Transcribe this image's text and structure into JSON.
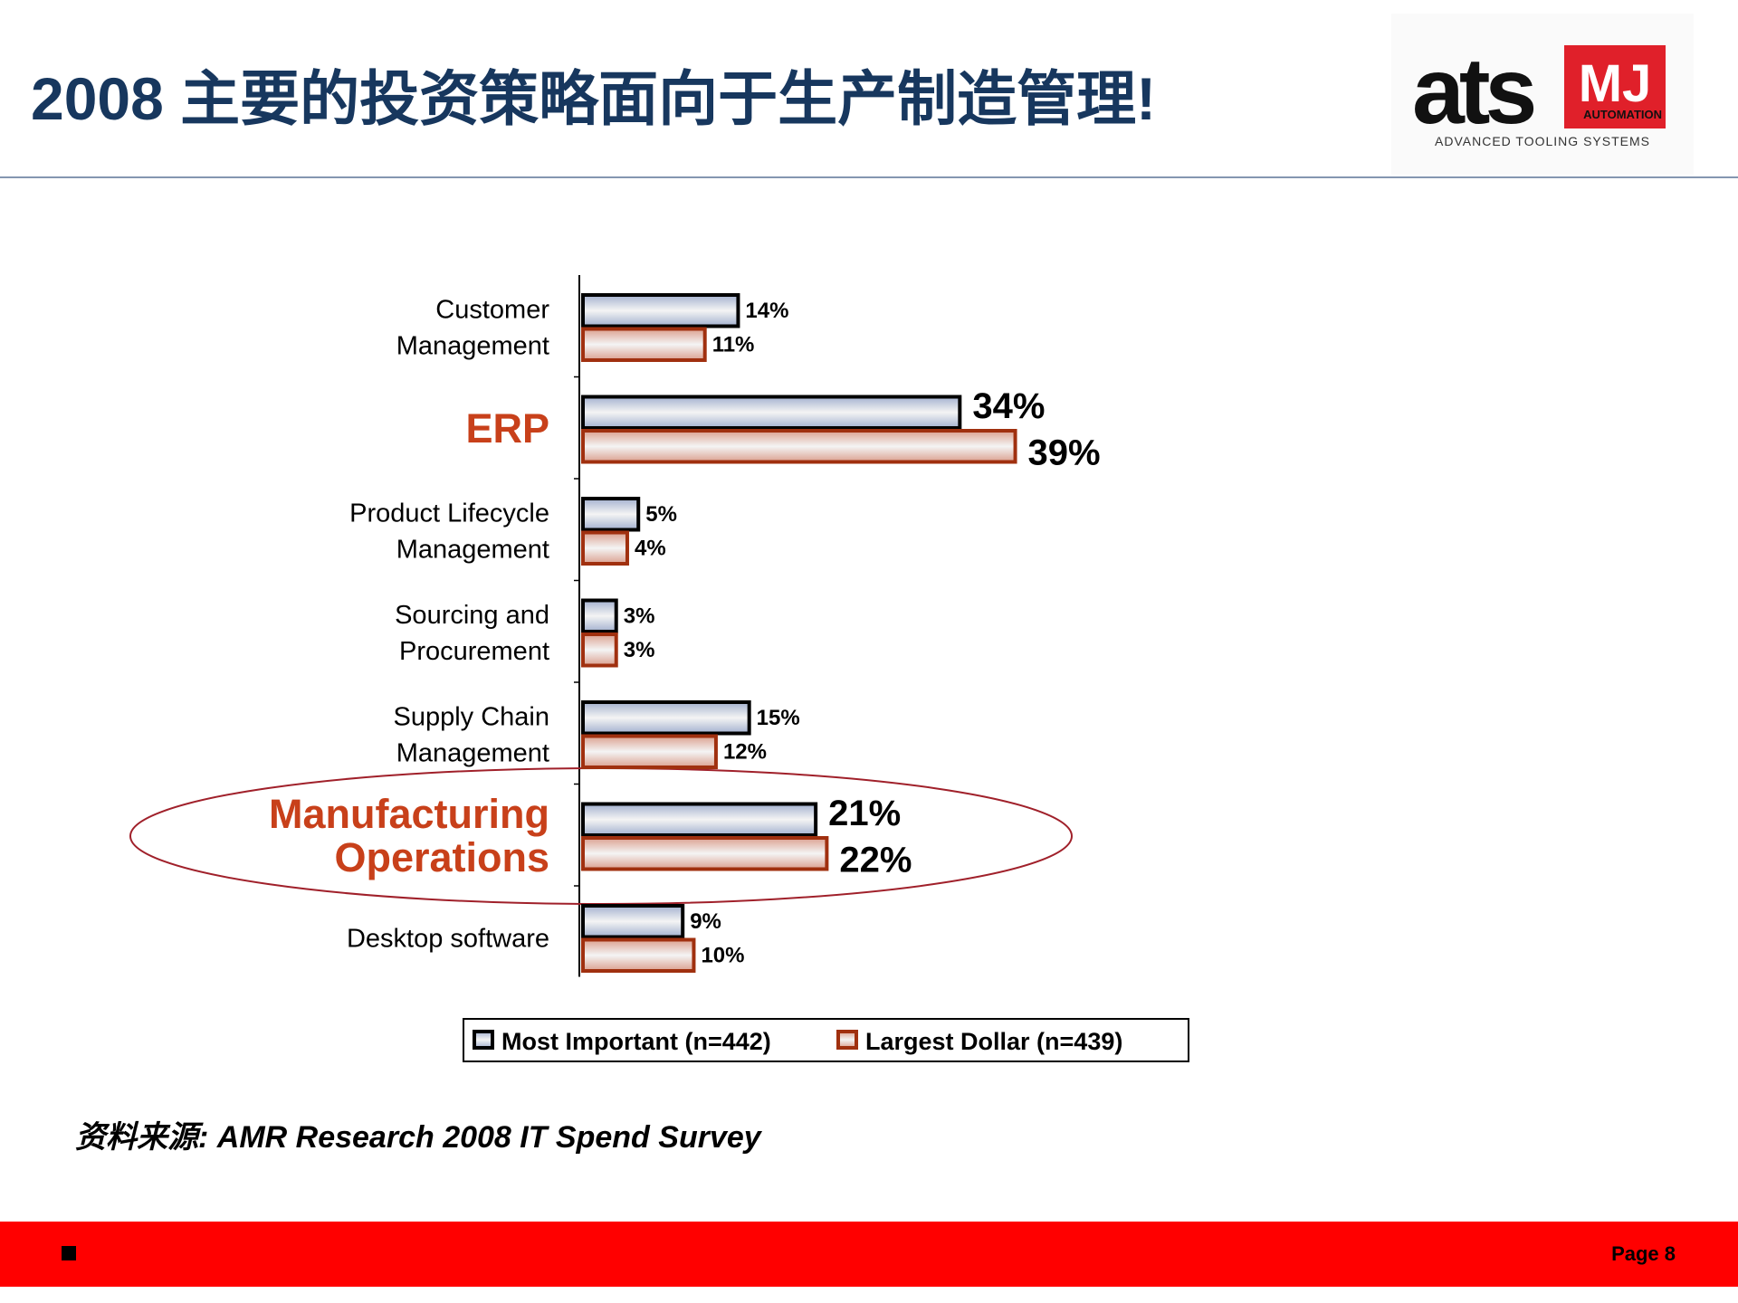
{
  "header": {
    "title": "2008 主要的投资策略面向于生产制造管理!",
    "logo": {
      "mark": "ats",
      "badge": "MJ",
      "badge_sub": "AUTOMATION",
      "tagline": "ADVANCED TOOLING SYSTEMS"
    }
  },
  "chart_data": {
    "type": "bar",
    "orientation": "horizontal",
    "categories": [
      "Customer\nManagement",
      "ERP",
      "Product Lifecycle\nManagement",
      "Sourcing and\nProcurement",
      "Supply Chain\nManagement",
      "Manufacturing\nOperations",
      "Desktop software"
    ],
    "emphasized": [
      1,
      5
    ],
    "series": [
      {
        "name": "Most Important (n=442)",
        "color": "#a3b1cf",
        "values": [
          14,
          34,
          5,
          3,
          15,
          21,
          9
        ],
        "value_labels": [
          "14%",
          "34%",
          "5%",
          "3%",
          "15%",
          "21%",
          "9%"
        ]
      },
      {
        "name": "Largest Dollar (n=439)",
        "color": "#dba08f",
        "values": [
          11,
          39,
          4,
          3,
          12,
          22,
          10
        ],
        "value_labels": [
          "11%",
          "39%",
          "4%",
          "3%",
          "12%",
          "22%",
          "10%"
        ]
      }
    ],
    "legend": "bottom"
  },
  "source": "资料来源: AMR Research 2008 IT Spend Survey",
  "footer": {
    "page": "Page 8"
  }
}
